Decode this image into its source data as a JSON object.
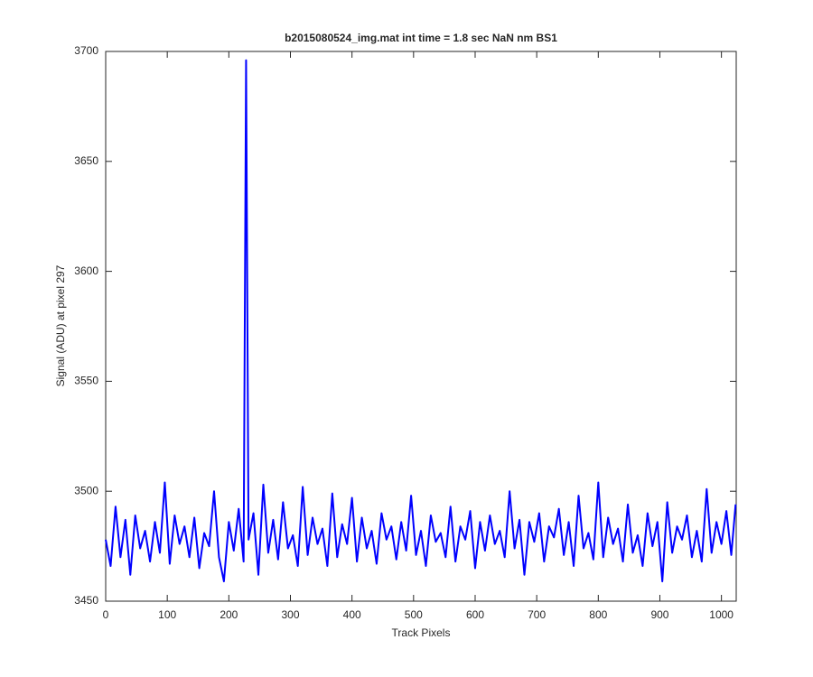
{
  "chart_data": {
    "type": "line",
    "title": "b2015080524_img.mat int time = 1.8 sec  NaN nm BS1",
    "x_label": "Track Pixels",
    "y_label": "Signal (ADU) at pixel 297",
    "xlim": [
      0,
      1024
    ],
    "ylim": [
      3450,
      3700
    ],
    "xticks": [
      0,
      100,
      200,
      300,
      400,
      500,
      600,
      700,
      800,
      900,
      1000
    ],
    "yticks": [
      3450,
      3500,
      3550,
      3600,
      3650,
      3700
    ],
    "series": [
      {
        "color": "#0000ff",
        "x": [
          0,
          8,
          16,
          24,
          32,
          40,
          48,
          56,
          64,
          72,
          80,
          88,
          96,
          104,
          112,
          120,
          128,
          136,
          144,
          152,
          160,
          168,
          176,
          184,
          192,
          200,
          208,
          216,
          224,
          228,
          232,
          240,
          248,
          256,
          264,
          272,
          280,
          288,
          296,
          304,
          312,
          320,
          328,
          336,
          344,
          352,
          360,
          368,
          376,
          384,
          392,
          400,
          408,
          416,
          424,
          432,
          440,
          448,
          456,
          464,
          472,
          480,
          488,
          496,
          504,
          512,
          520,
          528,
          536,
          544,
          552,
          560,
          568,
          576,
          584,
          592,
          600,
          608,
          616,
          624,
          632,
          640,
          648,
          656,
          664,
          672,
          680,
          688,
          696,
          704,
          712,
          720,
          728,
          736,
          744,
          752,
          760,
          768,
          776,
          784,
          792,
          800,
          808,
          816,
          824,
          832,
          840,
          848,
          856,
          864,
          872,
          880,
          888,
          896,
          904,
          912,
          920,
          928,
          936,
          944,
          952,
          960,
          968,
          976,
          984,
          992,
          1000,
          1008,
          1016,
          1023
        ],
        "values": [
          3478,
          3466,
          3493,
          3470,
          3487,
          3462,
          3489,
          3474,
          3482,
          3468,
          3486,
          3472,
          3504,
          3467,
          3489,
          3476,
          3484,
          3470,
          3488,
          3465,
          3481,
          3475,
          3500,
          3470,
          3459,
          3486,
          3473,
          3492,
          3468,
          3696,
          3478,
          3490,
          3462,
          3503,
          3472,
          3487,
          3469,
          3495,
          3474,
          3480,
          3466,
          3502,
          3471,
          3488,
          3476,
          3483,
          3466,
          3499,
          3470,
          3485,
          3476,
          3497,
          3468,
          3488,
          3474,
          3482,
          3467,
          3490,
          3478,
          3484,
          3469,
          3486,
          3473,
          3498,
          3471,
          3482,
          3466,
          3489,
          3477,
          3481,
          3470,
          3493,
          3468,
          3484,
          3478,
          3491,
          3465,
          3486,
          3473,
          3489,
          3476,
          3482,
          3470,
          3500,
          3474,
          3487,
          3462,
          3486,
          3477,
          3490,
          3468,
          3484,
          3479,
          3492,
          3471,
          3486,
          3466,
          3498,
          3474,
          3481,
          3469,
          3504,
          3470,
          3488,
          3476,
          3483,
          3468,
          3494,
          3472,
          3480,
          3466,
          3490,
          3475,
          3486,
          3459,
          3495,
          3472,
          3484,
          3478,
          3489,
          3470,
          3482,
          3468,
          3501,
          3472,
          3486,
          3476,
          3491,
          3471,
          3494
        ]
      }
    ]
  }
}
